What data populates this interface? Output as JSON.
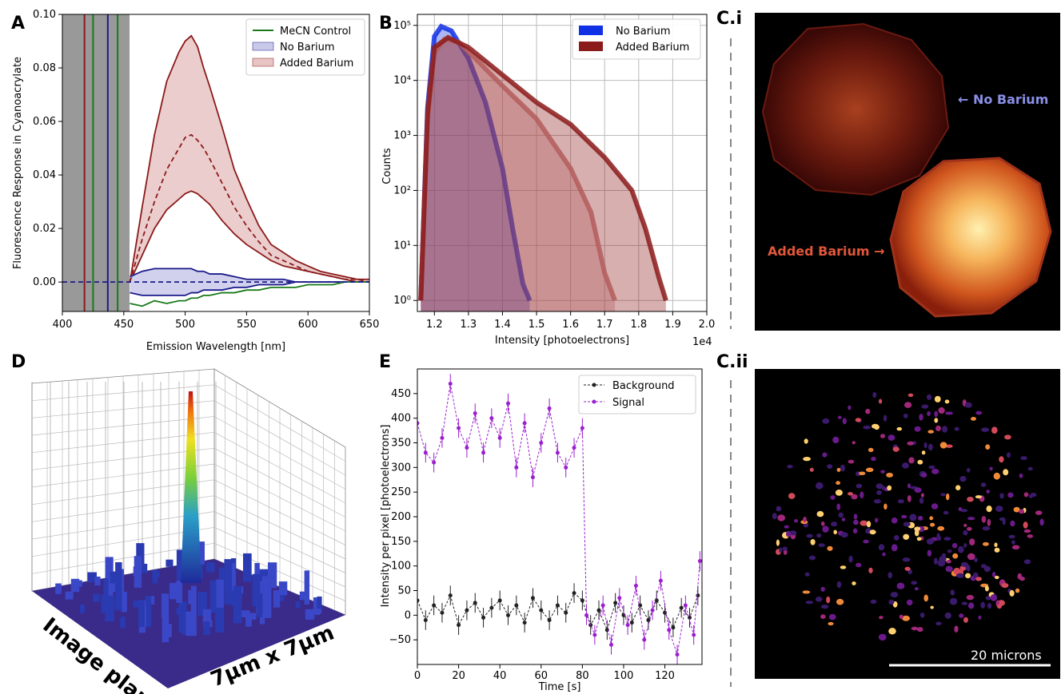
{
  "panel_labels": {
    "a": "A",
    "b": "B",
    "ci": "C.i",
    "cii": "C.ii",
    "d": "D",
    "e": "E"
  },
  "panel_c": {
    "no_barium_label": "← No Barium",
    "added_barium_label": "Added Barium →",
    "scale_bar_label": "20 microns",
    "colors": {
      "no_barium": "#8b8fe6",
      "added_barium": "#e2563a"
    }
  },
  "panel_d": {
    "label_image_plane": "Image plane",
    "label_size": "7μm x 7μm"
  },
  "chart_data": [
    {
      "id": "A",
      "type": "line",
      "xlabel": "Emission Wavelength [nm]",
      "ylabel": "Fluorescence Response in Cyanoacrylate",
      "xlim": [
        400,
        650
      ],
      "ylim": [
        -0.011,
        0.1
      ],
      "xticks": [
        400,
        450,
        500,
        550,
        600,
        650
      ],
      "xtick_labels": [
        "400",
        "450",
        "500",
        "550",
        "600",
        "650"
      ],
      "yticks": [
        0.0,
        0.02,
        0.04,
        0.06,
        0.08,
        0.1
      ],
      "ytick_labels": [
        "0.00",
        "0.02",
        "0.04",
        "0.06",
        "0.08",
        "0.10"
      ],
      "legend_position": "top-right",
      "legend": [
        "MeCN Control",
        "No Barium",
        "Added Barium"
      ],
      "shaded_region_x": [
        400,
        455
      ],
      "x": [
        455,
        465,
        475,
        485,
        495,
        500,
        505,
        510,
        515,
        520,
        530,
        540,
        550,
        560,
        570,
        580,
        590,
        600,
        610,
        620,
        630,
        640,
        650
      ],
      "series": [
        {
          "name": "Added Barium",
          "color": "#8b1a1a",
          "kind": "band_upper",
          "values": [
            0.0,
            0.028,
            0.055,
            0.075,
            0.086,
            0.09,
            0.092,
            0.088,
            0.08,
            0.073,
            0.058,
            0.042,
            0.031,
            0.021,
            0.014,
            0.011,
            0.008,
            0.006,
            0.004,
            0.003,
            0.002,
            0.001,
            0.001
          ]
        },
        {
          "name": "Added Barium",
          "color": "#8b1a1a",
          "kind": "mean",
          "values": [
            0.0,
            0.016,
            0.03,
            0.042,
            0.05,
            0.054,
            0.055,
            0.053,
            0.05,
            0.046,
            0.037,
            0.028,
            0.021,
            0.015,
            0.01,
            0.008,
            0.006,
            0.004,
            0.003,
            0.002,
            0.001,
            0.001,
            0.0
          ]
        },
        {
          "name": "Added Barium",
          "color": "#8b1a1a",
          "kind": "band_lower",
          "values": [
            0.0,
            0.01,
            0.02,
            0.027,
            0.031,
            0.033,
            0.034,
            0.033,
            0.031,
            0.029,
            0.023,
            0.018,
            0.014,
            0.011,
            0.008,
            0.006,
            0.005,
            0.004,
            0.003,
            0.002,
            0.001,
            0.0,
            0.0
          ]
        },
        {
          "name": "No Barium",
          "color": "#1a1a8b",
          "kind": "band_upper",
          "values": [
            0.002,
            0.004,
            0.005,
            0.005,
            0.005,
            0.005,
            0.005,
            0.004,
            0.004,
            0.003,
            0.003,
            0.002,
            0.001,
            0.001,
            0.001,
            0.001,
            0.0,
            0.0,
            0.0,
            0.0,
            0.0,
            0.0,
            0.0
          ]
        },
        {
          "name": "No Barium",
          "color": "#1a1a8b",
          "kind": "band_lower",
          "values": [
            -0.004,
            -0.005,
            -0.005,
            -0.005,
            -0.005,
            -0.005,
            -0.004,
            -0.004,
            -0.003,
            -0.003,
            -0.003,
            -0.002,
            -0.002,
            -0.001,
            -0.001,
            -0.001,
            0.0,
            0.0,
            0.0,
            0.0,
            0.0,
            0.0,
            0.0
          ]
        },
        {
          "name": "MeCN Control",
          "color": "#1a7a1a",
          "kind": "line",
          "values": [
            -0.008,
            -0.009,
            -0.007,
            -0.008,
            -0.007,
            -0.007,
            -0.006,
            -0.006,
            -0.005,
            -0.005,
            -0.004,
            -0.004,
            -0.003,
            -0.003,
            -0.002,
            -0.002,
            -0.002,
            -0.001,
            -0.001,
            -0.001,
            0.0,
            0.0,
            0.0
          ]
        }
      ]
    },
    {
      "id": "B",
      "type": "histogram",
      "xlabel": "Intensity [photoelectrons]",
      "ylabel": "Counts",
      "x_multiplier": "1e4",
      "xlim": [
        1.15,
        2.0
      ],
      "ylim_log10": [
        -0.2,
        5.2
      ],
      "yscale": "log",
      "xticks": [
        1.2,
        1.3,
        1.4,
        1.5,
        1.6,
        1.7,
        1.8,
        1.9,
        2.0
      ],
      "xtick_labels": [
        "1.2",
        "1.3",
        "1.4",
        "1.5",
        "1.6",
        "1.7",
        "1.8",
        "1.9",
        "2.0"
      ],
      "yticks_log10": [
        0,
        1,
        2,
        3,
        4,
        5
      ],
      "ytick_labels": [
        "10⁰",
        "10¹",
        "10²",
        "10³",
        "10⁴",
        "10⁵"
      ],
      "legend_position": "top-right",
      "legend": [
        "No Barium",
        "Added Barium"
      ],
      "series": [
        {
          "name": "No Barium",
          "color": "#1030e6",
          "x": [
            1.16,
            1.18,
            1.2,
            1.22,
            1.25,
            1.3,
            1.35,
            1.4,
            1.43,
            1.46,
            1.48
          ],
          "values_log10": [
            0,
            3.5,
            4.8,
            4.98,
            4.9,
            4.4,
            3.6,
            2.4,
            1.3,
            0.3,
            0
          ]
        },
        {
          "name": "Added Barium",
          "color": "#c98080",
          "x": [
            1.16,
            1.18,
            1.2,
            1.23,
            1.27,
            1.32,
            1.4,
            1.5,
            1.6,
            1.66,
            1.7,
            1.73
          ],
          "values_log10": [
            0,
            3.3,
            4.5,
            4.75,
            4.7,
            4.4,
            3.9,
            3.3,
            2.4,
            1.6,
            0.5,
            0
          ]
        },
        {
          "name": "Added Barium",
          "color": "#8b1a1a",
          "x": [
            1.16,
            1.18,
            1.2,
            1.24,
            1.3,
            1.4,
            1.5,
            1.6,
            1.7,
            1.78,
            1.82,
            1.86,
            1.88
          ],
          "values_log10": [
            0,
            3.4,
            4.6,
            4.78,
            4.6,
            4.1,
            3.6,
            3.2,
            2.6,
            2.0,
            1.3,
            0.4,
            0
          ]
        }
      ]
    },
    {
      "id": "E",
      "type": "scatter",
      "xlabel": "Time [s]",
      "ylabel": "Intensity per pixel [photoelectrons]",
      "xlim": [
        0,
        138
      ],
      "ylim": [
        -100,
        500
      ],
      "xticks": [
        0,
        20,
        40,
        60,
        80,
        100,
        120
      ],
      "xtick_labels": [
        "0",
        "20",
        "40",
        "60",
        "80",
        "100",
        "120"
      ],
      "yticks": [
        -50,
        0,
        50,
        100,
        150,
        200,
        250,
        300,
        350,
        400,
        450
      ],
      "ytick_labels": [
        "−50",
        "0",
        "50",
        "100",
        "150",
        "200",
        "250",
        "300",
        "350",
        "400",
        "450"
      ],
      "legend_position": "top-right",
      "legend": [
        "Background",
        "Signal"
      ],
      "series": [
        {
          "name": "Background",
          "color": "#222222",
          "x": [
            0,
            4,
            8,
            12,
            16,
            20,
            24,
            28,
            32,
            36,
            40,
            44,
            48,
            52,
            56,
            60,
            64,
            68,
            72,
            76,
            80,
            84,
            88,
            92,
            96,
            100,
            104,
            108,
            112,
            116,
            120,
            124,
            128,
            132,
            136
          ],
          "values": [
            30,
            -10,
            20,
            5,
            40,
            -20,
            10,
            25,
            -5,
            15,
            30,
            0,
            20,
            -15,
            35,
            10,
            -10,
            20,
            5,
            45,
            30,
            -20,
            10,
            -30,
            25,
            0,
            -15,
            20,
            -10,
            30,
            5,
            -25,
            15,
            -5,
            40
          ]
        },
        {
          "name": "Signal",
          "color": "#9b1fcf",
          "x": [
            0,
            4,
            8,
            12,
            16,
            20,
            24,
            28,
            32,
            36,
            40,
            44,
            48,
            52,
            56,
            60,
            64,
            68,
            72,
            76,
            80,
            82,
            86,
            90,
            94,
            98,
            102,
            106,
            110,
            114,
            118,
            122,
            126,
            130,
            134,
            137
          ],
          "values": [
            390,
            330,
            310,
            360,
            470,
            380,
            340,
            410,
            330,
            400,
            360,
            430,
            300,
            390,
            280,
            350,
            420,
            330,
            300,
            340,
            380,
            0,
            -40,
            20,
            -60,
            35,
            -20,
            60,
            -50,
            10,
            70,
            -30,
            -80,
            20,
            -40,
            110
          ]
        }
      ]
    }
  ]
}
